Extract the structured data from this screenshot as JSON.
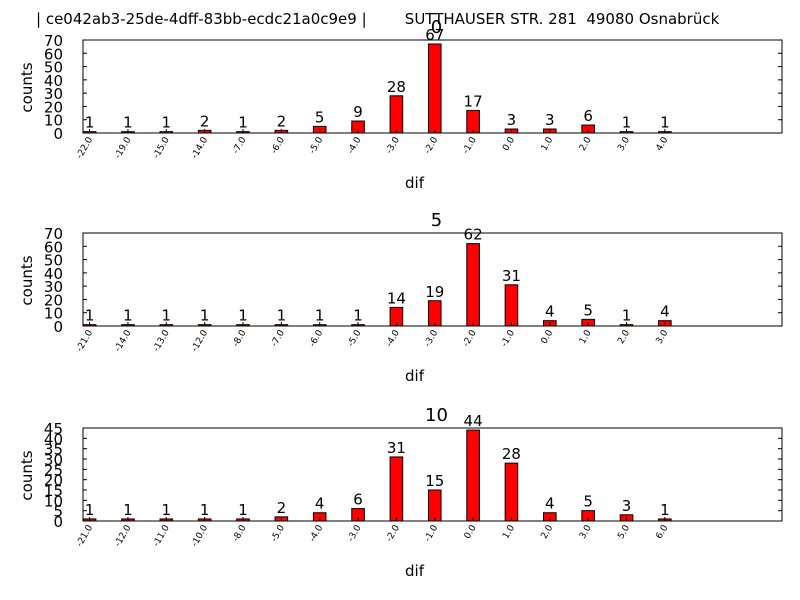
{
  "page_title": "| ce042ab3-25de-4dff-83bb-ecdc21a0c9e9 |        SUTTHAUSER STR. 281  49080 Osnabrück",
  "colors": {
    "bar": "#ff0000",
    "bar_edge": "#000000",
    "axis": "#000000",
    "background": "#ffffff"
  },
  "chart_data": [
    {
      "type": "bar",
      "title": "0",
      "xlabel": "dif",
      "ylabel": "counts",
      "ylim": [
        0,
        70
      ],
      "yticks": [
        0,
        10,
        20,
        30,
        40,
        50,
        60,
        70
      ],
      "categories": [
        "-22.0",
        "-19.0",
        "-15.0",
        "-14.0",
        "-7.0",
        "-6.0",
        "-5.0",
        "-4.0",
        "-3.0",
        "-2.0",
        "-1.0",
        "0.0",
        "1.0",
        "2.0",
        "3.0",
        "4.0"
      ],
      "values": [
        1,
        1,
        1,
        2,
        1,
        2,
        5,
        9,
        28,
        67,
        17,
        3,
        3,
        6,
        1,
        1
      ],
      "data_labels": [
        "1",
        "1",
        "1",
        "2",
        "1",
        "2",
        "5",
        "9",
        "28",
        "67",
        "17",
        "3",
        "3",
        "6",
        "1",
        "1"
      ]
    },
    {
      "type": "bar",
      "title": "5",
      "xlabel": "dif",
      "ylabel": "counts",
      "ylim": [
        0,
        70
      ],
      "yticks": [
        0,
        10,
        20,
        30,
        40,
        50,
        60,
        70
      ],
      "categories": [
        "-21.0",
        "-14.0",
        "-13.0",
        "-12.0",
        "-8.0",
        "-7.0",
        "-6.0",
        "-5.0",
        "-4.0",
        "-3.0",
        "-2.0",
        "-1.0",
        "0.0",
        "1.0",
        "2.0",
        "3.0"
      ],
      "values": [
        1,
        1,
        1,
        1,
        1,
        1,
        1,
        1,
        14,
        19,
        62,
        31,
        4,
        5,
        1,
        4
      ],
      "data_labels": [
        "1",
        "1",
        "1",
        "1",
        "1",
        "1",
        "1",
        "1",
        "14",
        "19",
        "62",
        "31",
        "4",
        "5",
        "1",
        "4"
      ]
    },
    {
      "type": "bar",
      "title": "10",
      "xlabel": "dif",
      "ylabel": "counts",
      "ylim": [
        0,
        45
      ],
      "yticks": [
        0,
        5,
        10,
        15,
        20,
        25,
        30,
        35,
        40,
        45
      ],
      "categories": [
        "-21.0",
        "-12.0",
        "-11.0",
        "-10.0",
        "-8.0",
        "-5.0",
        "-4.0",
        "-3.0",
        "-2.0",
        "-1.0",
        "0.0",
        "1.0",
        "2.0",
        "3.0",
        "5.0",
        "6.0"
      ],
      "values": [
        1,
        1,
        1,
        1,
        1,
        2,
        4,
        6,
        31,
        15,
        44,
        28,
        4,
        5,
        3,
        1
      ],
      "data_labels": [
        "1",
        "1",
        "1",
        "1",
        "1",
        "2",
        "4",
        "6",
        "31",
        "15",
        "44",
        "28",
        "4",
        "5",
        "3",
        "1"
      ]
    }
  ]
}
